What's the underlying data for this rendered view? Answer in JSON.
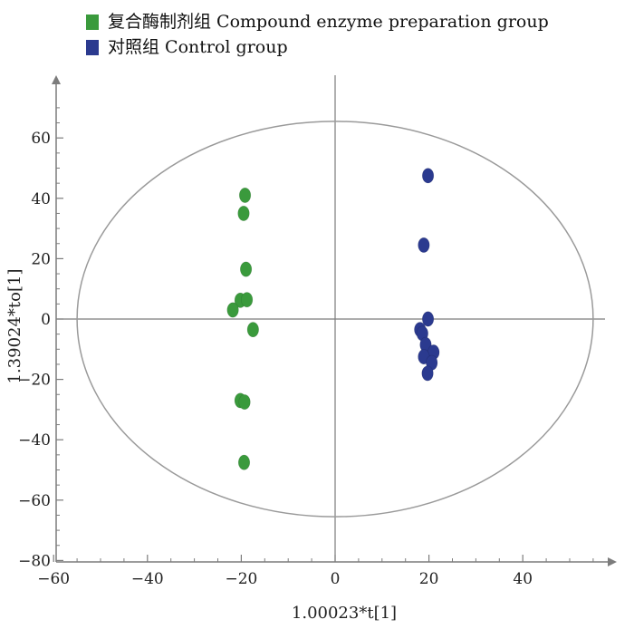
{
  "legend": {
    "items": [
      {
        "label": "复合酶制剂组  Compound enzyme preparation group",
        "color": "#3a9a3c"
      },
      {
        "label": "对照组  Control group",
        "color": "#2b3a8f"
      }
    ]
  },
  "chart_data": {
    "type": "scatter",
    "xlabel": "1.00023*t[1]",
    "ylabel": "1.39024*to[1]",
    "xlim": [
      -60,
      57
    ],
    "ylim": [
      -80,
      78
    ],
    "xticks": [
      -60,
      -40,
      -20,
      0,
      20,
      40
    ],
    "yticks": [
      60,
      40,
      20,
      0,
      -20,
      -40,
      -60,
      -80
    ],
    "xtick_labels": [
      "−60",
      "−40",
      "−20",
      "0",
      "20",
      "40"
    ],
    "ytick_labels": [
      "60",
      "40",
      "20",
      "0",
      "−20",
      "−40",
      "−60",
      "−80"
    ],
    "ellipse": {
      "center": [
        0,
        0
      ],
      "rx": 55,
      "ry": 65.5
    },
    "series": [
      {
        "name": "复合酶制剂组  Compound enzyme preparation group",
        "color": "#3a9a3c",
        "points": [
          [
            -19.2,
            41
          ],
          [
            -19.5,
            35
          ],
          [
            -19,
            16.5
          ],
          [
            -20.2,
            6.2
          ],
          [
            -18.8,
            6.4
          ],
          [
            -21.8,
            3
          ],
          [
            -17.5,
            -3.5
          ],
          [
            -20.2,
            -27
          ],
          [
            -19.3,
            -27.5
          ],
          [
            -19.4,
            -47.5
          ]
        ]
      },
      {
        "name": "对照组  Control group",
        "color": "#2b3a8f",
        "points": [
          [
            19.8,
            47.5
          ],
          [
            18.9,
            24.5
          ],
          [
            19.8,
            0
          ],
          [
            18.1,
            -3.5
          ],
          [
            18.6,
            -4.8
          ],
          [
            19.3,
            -8.5
          ],
          [
            21,
            -11
          ],
          [
            18.9,
            -12.5
          ],
          [
            20.6,
            -14.5
          ],
          [
            19.7,
            -18
          ]
        ]
      }
    ],
    "grid": false,
    "legend_position": "top-left"
  }
}
